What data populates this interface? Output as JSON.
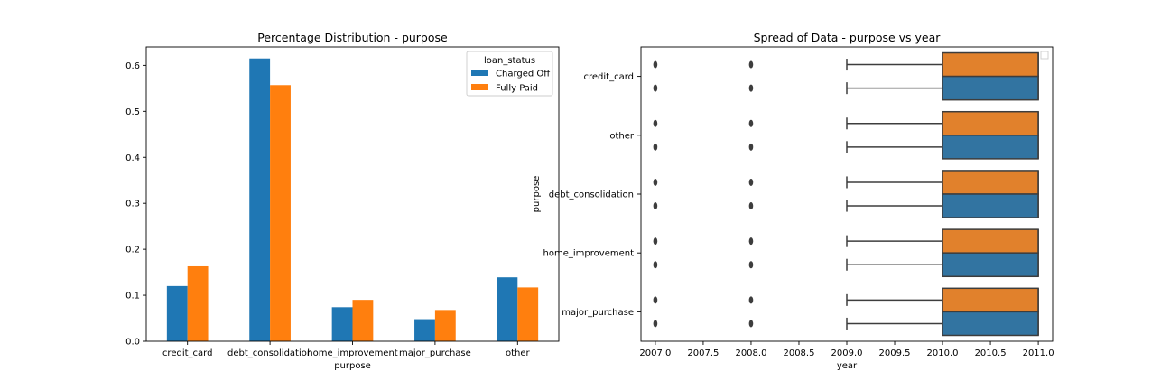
{
  "chart_data": [
    {
      "type": "bar",
      "title": "Percentage Distribution - purpose",
      "xlabel": "purpose",
      "ylabel": "",
      "categories": [
        "credit_card",
        "debt_consolidation",
        "home_improvement",
        "major_purchase",
        "other"
      ],
      "series": [
        {
          "name": "Charged Off",
          "color": "#1f77b4",
          "values": [
            0.12,
            0.615,
            0.074,
            0.048,
            0.139
          ]
        },
        {
          "name": "Fully Paid",
          "color": "#ff7f0e",
          "values": [
            0.163,
            0.557,
            0.09,
            0.068,
            0.117
          ]
        }
      ],
      "ylim": [
        0,
        0.64
      ],
      "yticks": [
        0.0,
        0.1,
        0.2,
        0.3,
        0.4,
        0.5,
        0.6
      ],
      "ytick_labels": [
        "0.0",
        "0.1",
        "0.2",
        "0.3",
        "0.4",
        "0.5",
        "0.6"
      ],
      "legend": {
        "title": "loan_status",
        "placement": "top-right"
      },
      "grid": false
    },
    {
      "type": "box",
      "title": "Spread of Data - purpose vs year",
      "xlabel": "year",
      "ylabel": "purpose",
      "orientation": "horizontal",
      "categories": [
        "credit_card",
        "other",
        "debt_consolidation",
        "home_improvement",
        "major_purchase"
      ],
      "series_colors": [
        "#e1812c",
        "#3274a1"
      ],
      "box": {
        "whisker_low": 2009.0,
        "q1": 2010.0,
        "median": 2011.0,
        "q3": 2011.0,
        "whisker_high": 2011.0
      },
      "outliers": [
        2007.0,
        2008.0
      ],
      "xlim": [
        2006.85,
        2011.15
      ],
      "xticks": [
        2007.0,
        2007.5,
        2008.0,
        2008.5,
        2009.0,
        2009.5,
        2010.0,
        2010.5,
        2011.0
      ],
      "xtick_labels": [
        "2007.0",
        "2007.5",
        "2008.0",
        "2008.5",
        "2009.0",
        "2009.5",
        "2010.0",
        "2010.5",
        "2011.0"
      ],
      "legend": {
        "placement": "top-right",
        "entries": []
      },
      "grid": false
    }
  ]
}
